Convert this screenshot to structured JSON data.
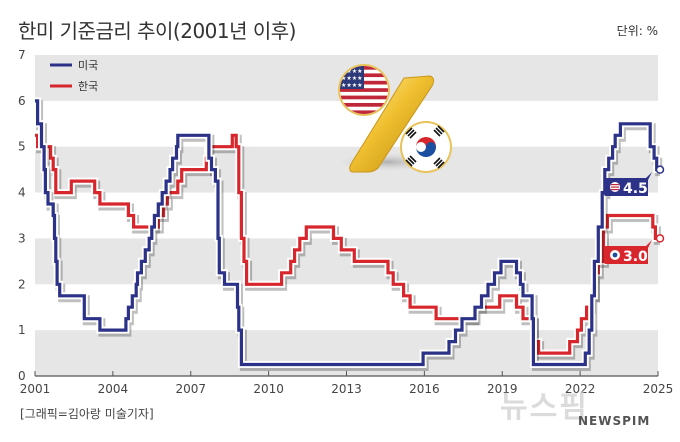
{
  "header": {
    "title": "한미 기준금리 추이(2001년 이후)",
    "unit": "단위: %"
  },
  "footer": {
    "credit": "[그래픽=김아랑 미술기자]",
    "watermark": "뉴스핌",
    "watermark_sub": "NEWSPIM"
  },
  "colors": {
    "us": "#2b3288",
    "kr": "#d8262d",
    "band": "#e6e6e6",
    "axis": "#555555"
  },
  "chart_data": {
    "type": "line",
    "title": "한미 기준금리 추이(2001년 이후)",
    "xlabel": "",
    "ylabel": "단위: %",
    "xlim": [
      2001,
      2025
    ],
    "ylim": [
      0,
      7
    ],
    "yticks": [
      "0",
      "1",
      "2",
      "3",
      "4",
      "5",
      "6",
      "7"
    ],
    "xticks": [
      "2001",
      "2004",
      "2007",
      "2010",
      "2013",
      "2016",
      "2019",
      "2022",
      "2025"
    ],
    "legend": [
      {
        "name": "미국",
        "color": "#2b3288"
      },
      {
        "name": "한국",
        "color": "#d8262d"
      }
    ],
    "legend_position": "top-left",
    "grid": "alternating horizontal bands",
    "series": [
      {
        "name": "미국",
        "color": "#2b3288",
        "step": true,
        "points": [
          [
            2001.0,
            6.0
          ],
          [
            2001.1,
            5.5
          ],
          [
            2001.25,
            5.0
          ],
          [
            2001.35,
            4.5
          ],
          [
            2001.4,
            4.0
          ],
          [
            2001.5,
            3.75
          ],
          [
            2001.7,
            3.5
          ],
          [
            2001.75,
            3.0
          ],
          [
            2001.8,
            2.5
          ],
          [
            2001.85,
            2.0
          ],
          [
            2001.95,
            1.75
          ],
          [
            2002.9,
            1.25
          ],
          [
            2003.5,
            1.0
          ],
          [
            2004.5,
            1.25
          ],
          [
            2004.6,
            1.5
          ],
          [
            2004.75,
            1.75
          ],
          [
            2004.9,
            2.0
          ],
          [
            2004.95,
            2.25
          ],
          [
            2005.1,
            2.5
          ],
          [
            2005.25,
            2.75
          ],
          [
            2005.4,
            3.0
          ],
          [
            2005.5,
            3.25
          ],
          [
            2005.6,
            3.5
          ],
          [
            2005.75,
            3.75
          ],
          [
            2005.9,
            4.0
          ],
          [
            2006.05,
            4.25
          ],
          [
            2006.2,
            4.5
          ],
          [
            2006.3,
            4.75
          ],
          [
            2006.45,
            5.0
          ],
          [
            2006.5,
            5.25
          ],
          [
            2007.7,
            4.75
          ],
          [
            2007.8,
            4.5
          ],
          [
            2007.95,
            4.25
          ],
          [
            2008.05,
            3.0
          ],
          [
            2008.1,
            2.25
          ],
          [
            2008.3,
            2.0
          ],
          [
            2008.8,
            1.5
          ],
          [
            2008.85,
            1.0
          ],
          [
            2008.95,
            0.25
          ],
          [
            2015.95,
            0.5
          ],
          [
            2016.95,
            0.75
          ],
          [
            2017.2,
            1.0
          ],
          [
            2017.45,
            1.25
          ],
          [
            2017.95,
            1.5
          ],
          [
            2018.2,
            1.75
          ],
          [
            2018.45,
            2.0
          ],
          [
            2018.7,
            2.25
          ],
          [
            2018.95,
            2.5
          ],
          [
            2019.55,
            2.25
          ],
          [
            2019.7,
            2.0
          ],
          [
            2019.8,
            1.75
          ],
          [
            2020.15,
            1.25
          ],
          [
            2020.2,
            0.25
          ],
          [
            2022.2,
            0.5
          ],
          [
            2022.35,
            1.0
          ],
          [
            2022.45,
            1.75
          ],
          [
            2022.55,
            2.5
          ],
          [
            2022.7,
            3.25
          ],
          [
            2022.85,
            4.0
          ],
          [
            2022.95,
            4.5
          ],
          [
            2023.1,
            4.75
          ],
          [
            2023.25,
            5.0
          ],
          [
            2023.35,
            5.25
          ],
          [
            2023.55,
            5.5
          ],
          [
            2024.7,
            5.0
          ],
          [
            2024.85,
            4.75
          ],
          [
            2024.95,
            4.5
          ],
          [
            2025.0,
            4.5
          ]
        ],
        "end_label": "4.5"
      },
      {
        "name": "한국",
        "color": "#d8262d",
        "step": true,
        "points": [
          [
            2001.0,
            5.25
          ],
          [
            2001.1,
            5.0
          ],
          [
            2001.6,
            4.75
          ],
          [
            2001.7,
            4.5
          ],
          [
            2001.8,
            4.0
          ],
          [
            2002.4,
            4.25
          ],
          [
            2003.3,
            4.0
          ],
          [
            2003.5,
            3.75
          ],
          [
            2004.6,
            3.5
          ],
          [
            2004.8,
            3.25
          ],
          [
            2005.75,
            3.5
          ],
          [
            2005.95,
            3.75
          ],
          [
            2006.1,
            4.0
          ],
          [
            2006.5,
            4.25
          ],
          [
            2006.65,
            4.5
          ],
          [
            2007.6,
            4.75
          ],
          [
            2007.65,
            5.0
          ],
          [
            2008.6,
            5.25
          ],
          [
            2008.75,
            5.0
          ],
          [
            2008.85,
            4.0
          ],
          [
            2008.95,
            3.0
          ],
          [
            2009.05,
            2.5
          ],
          [
            2009.15,
            2.0
          ],
          [
            2010.5,
            2.25
          ],
          [
            2010.85,
            2.5
          ],
          [
            2011.0,
            2.75
          ],
          [
            2011.2,
            3.0
          ],
          [
            2011.45,
            3.25
          ],
          [
            2012.5,
            3.0
          ],
          [
            2012.8,
            2.75
          ],
          [
            2013.3,
            2.5
          ],
          [
            2014.6,
            2.25
          ],
          [
            2014.8,
            2.0
          ],
          [
            2015.2,
            1.75
          ],
          [
            2015.45,
            1.5
          ],
          [
            2016.45,
            1.25
          ],
          [
            2017.9,
            1.5
          ],
          [
            2018.9,
            1.75
          ],
          [
            2019.55,
            1.5
          ],
          [
            2019.8,
            1.25
          ],
          [
            2020.2,
            0.75
          ],
          [
            2020.4,
            0.5
          ],
          [
            2021.6,
            0.75
          ],
          [
            2021.9,
            1.0
          ],
          [
            2022.05,
            1.25
          ],
          [
            2022.25,
            1.5
          ],
          [
            2022.4,
            1.75
          ],
          [
            2022.55,
            2.25
          ],
          [
            2022.7,
            2.5
          ],
          [
            2022.9,
            3.25
          ],
          [
            2023.05,
            3.5
          ],
          [
            2024.8,
            3.25
          ],
          [
            2024.9,
            3.0
          ],
          [
            2025.0,
            3.0
          ]
        ],
        "end_label": "3.0"
      }
    ],
    "annotations": [
      "4.5 (US flag badge)",
      "3.0 (KR flag badge)"
    ]
  }
}
